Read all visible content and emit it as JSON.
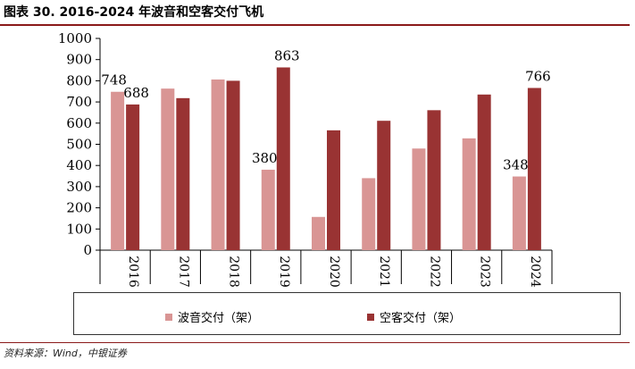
{
  "header": {
    "title": "图表 30. 2016-2024 年波音和空客交付飞机"
  },
  "footer": {
    "source": "资料来源：Wind，中银证券"
  },
  "colors": {
    "boeing": "#d99594",
    "airbus": "#993333",
    "accent_rule": "#8b1a1a"
  },
  "chart_data": {
    "type": "bar",
    "title": "",
    "xlabel": "",
    "ylabel": "",
    "ylim": [
      0,
      1000
    ],
    "yticks": [
      0,
      100,
      200,
      300,
      400,
      500,
      600,
      700,
      800,
      900,
      1000
    ],
    "grid": false,
    "legend_position": "bottom",
    "categories": [
      "2016",
      "2017",
      "2018",
      "2019",
      "2020",
      "2021",
      "2022",
      "2023",
      "2024"
    ],
    "series": [
      {
        "name": "波音交付（架）",
        "color": "#d99594",
        "values": [
          748,
          763,
          806,
          380,
          157,
          340,
          480,
          528,
          348
        ],
        "data_labels": [
          "748",
          "",
          "",
          "380",
          "",
          "",
          "",
          "",
          "348"
        ]
      },
      {
        "name": "空客交付（架）",
        "color": "#993333",
        "values": [
          688,
          718,
          800,
          863,
          566,
          611,
          661,
          735,
          766
        ],
        "data_labels": [
          "688",
          "",
          "",
          "863",
          "",
          "",
          "",
          "",
          "766"
        ]
      }
    ]
  }
}
